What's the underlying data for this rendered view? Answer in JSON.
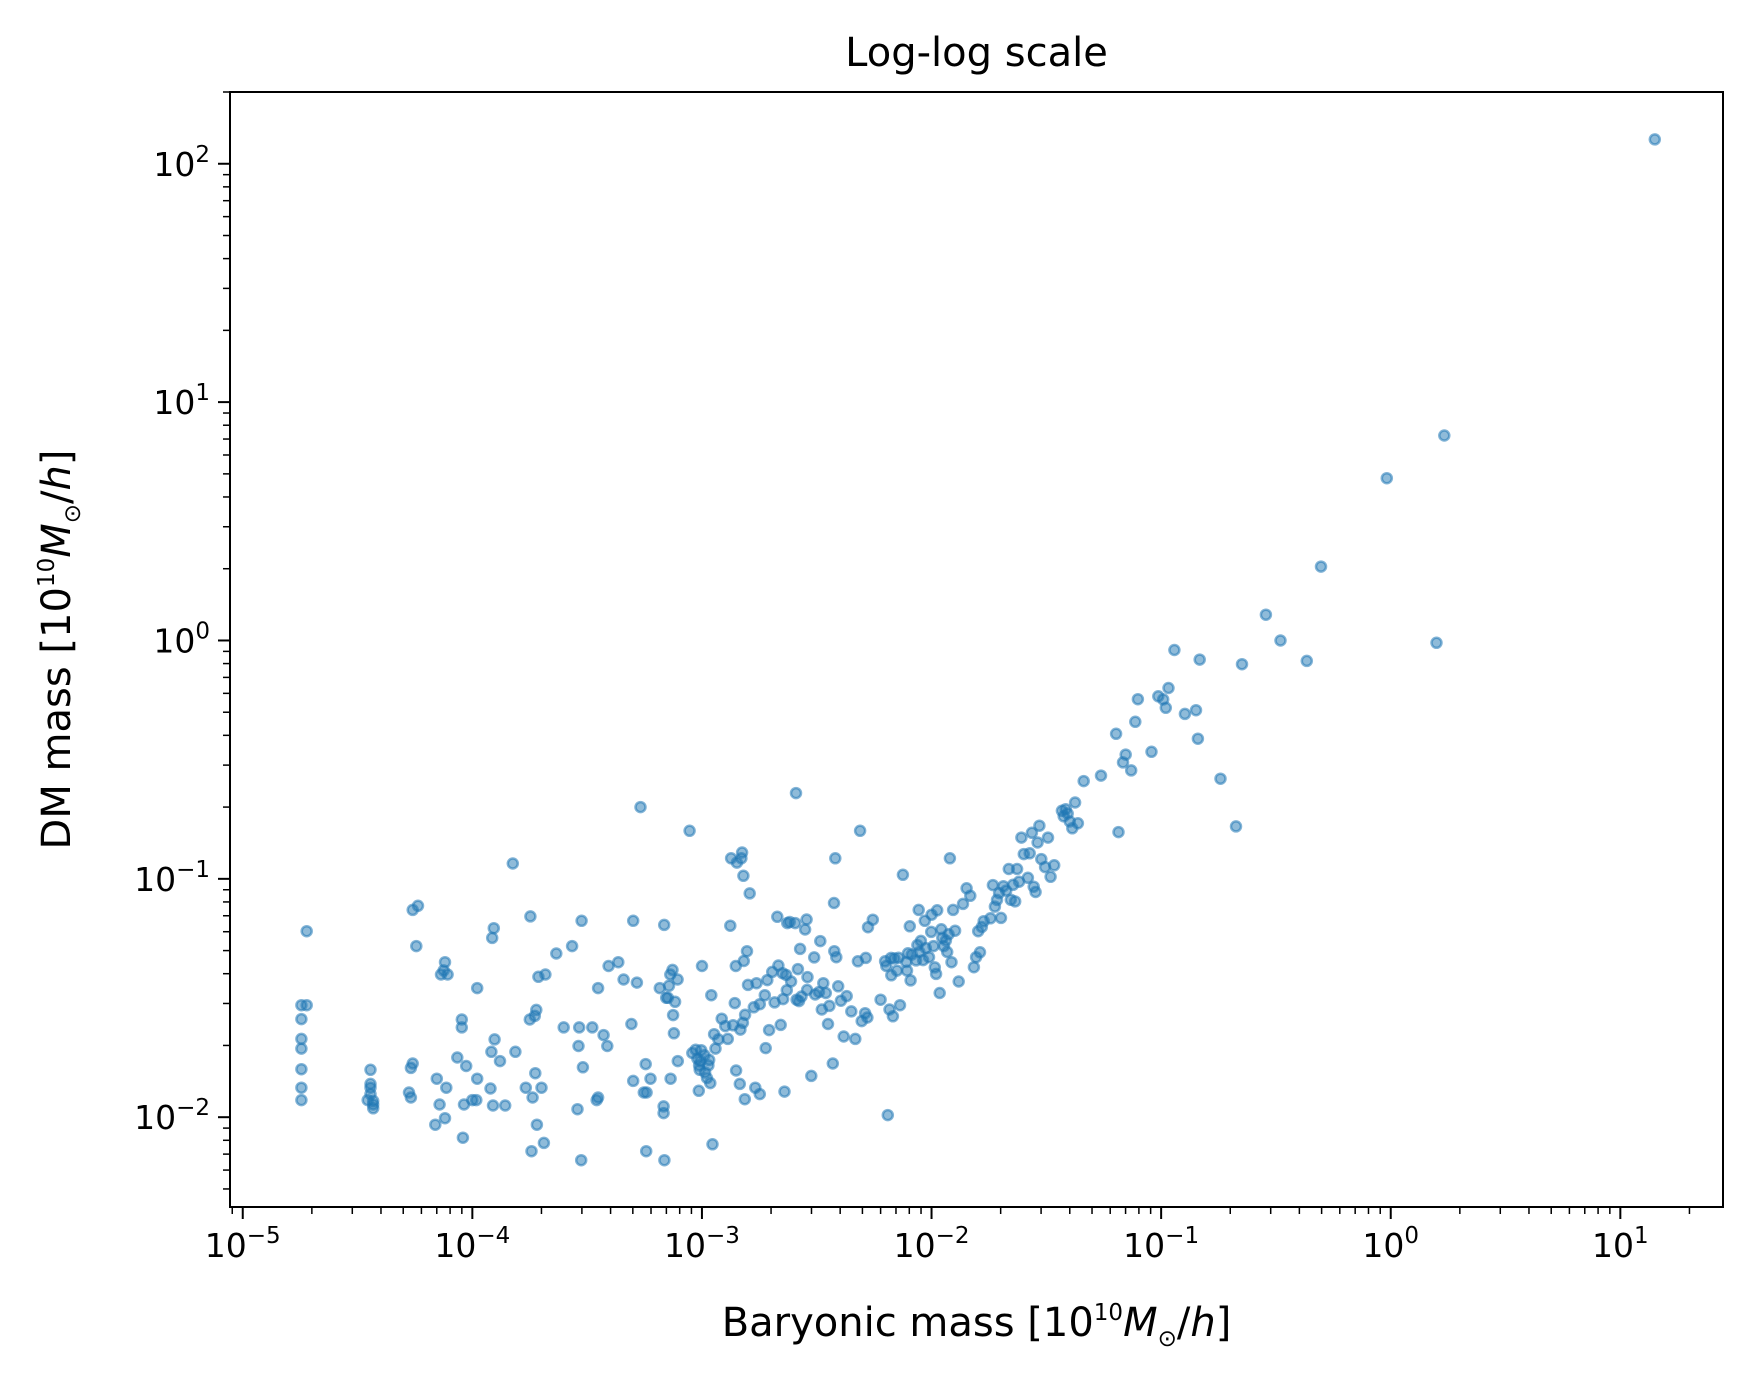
{
  "chart_data": {
    "type": "scatter",
    "title": "Log-log scale",
    "xlabel": {
      "text": "Baryonic mass [10",
      "exp": "10",
      "var": "M",
      "sub": "⊙",
      "tail": "/",
      "unit": "h",
      "close": "]"
    },
    "ylabel": {
      "text": "DM mass [10",
      "exp": "10",
      "var": "M",
      "sub": "⊙",
      "tail": "/",
      "unit": "h",
      "close": "]"
    },
    "xscale": "log",
    "yscale": "log",
    "xlim": [
      8.8e-06,
      28
    ],
    "ylim": [
      0.0042,
      200
    ],
    "x_ticks": [
      {
        "base": "10",
        "exp": "−5"
      },
      {
        "base": "10",
        "exp": "−4"
      },
      {
        "base": "10",
        "exp": "−3"
      },
      {
        "base": "10",
        "exp": "−2"
      },
      {
        "base": "10",
        "exp": "−1"
      },
      {
        "base": "10",
        "exp": "0"
      },
      {
        "base": "10",
        "exp": "1"
      }
    ],
    "y_ticks": [
      {
        "base": "10",
        "exp": "−2"
      },
      {
        "base": "10",
        "exp": "−1"
      },
      {
        "base": "10",
        "exp": "0"
      },
      {
        "base": "10",
        "exp": "1"
      },
      {
        "base": "10",
        "exp": "2"
      }
    ],
    "marker_color": "#1f77b4",
    "grid": false,
    "legend": "none",
    "points": [
      [
        1.8e-05,
        0.0118
      ],
      [
        1.8e-05,
        0.0133
      ],
      [
        1.8e-05,
        0.0159
      ],
      [
        1.8e-05,
        0.0194
      ],
      [
        1.8e-05,
        0.0213
      ],
      [
        1.8e-05,
        0.0258
      ],
      [
        1.8e-05,
        0.0295
      ],
      [
        1.9e-05,
        0.0295
      ],
      [
        1.9e-05,
        0.0603
      ],
      [
        3.5e-05,
        0.0118
      ],
      [
        3.6e-05,
        0.0125
      ],
      [
        3.6e-05,
        0.0133
      ],
      [
        3.6e-05,
        0.0138
      ],
      [
        3.6e-05,
        0.0158
      ],
      [
        3.7e-05,
        0.0109
      ],
      [
        3.7e-05,
        0.0113
      ],
      [
        3.7e-05,
        0.0117
      ],
      [
        5.3e-05,
        0.0127
      ],
      [
        5.4e-05,
        0.0121
      ],
      [
        5.4e-05,
        0.0161
      ],
      [
        5.5e-05,
        0.0168
      ],
      [
        5.5e-05,
        0.0741
      ],
      [
        5.7e-05,
        0.0522
      ],
      [
        5.8e-05,
        0.0771
      ],
      [
        6.9e-05,
        0.0093
      ],
      [
        7e-05,
        0.0145
      ],
      [
        7.2e-05,
        0.0113
      ],
      [
        7.3e-05,
        0.0397
      ],
      [
        7.5e-05,
        0.0413
      ],
      [
        7.6e-05,
        0.0099
      ],
      [
        7.6e-05,
        0.0447
      ],
      [
        7.7e-05,
        0.0133
      ],
      [
        7.8e-05,
        0.0397
      ],
      [
        8.6e-05,
        0.0178
      ],
      [
        9e-05,
        0.0257
      ],
      [
        9e-05,
        0.0238
      ],
      [
        9.1e-05,
        0.0082
      ],
      [
        9.2e-05,
        0.0113
      ],
      [
        9.4e-05,
        0.0164
      ],
      [
        0.0001,
        0.0118
      ],
      [
        0.000104,
        0.0118
      ],
      [
        0.000105,
        0.0145
      ],
      [
        0.000105,
        0.0348
      ],
      [
        0.00012,
        0.0132
      ],
      [
        0.000121,
        0.0188
      ],
      [
        0.000122,
        0.0565
      ],
      [
        0.000123,
        0.0112
      ],
      [
        0.000124,
        0.0621
      ],
      [
        0.000125,
        0.0212
      ],
      [
        0.000132,
        0.0172
      ],
      [
        0.000139,
        0.0112
      ],
      [
        0.00015,
        0.116
      ],
      [
        0.000154,
        0.0188
      ],
      [
        0.000171,
        0.0133
      ],
      [
        0.000178,
        0.0257
      ],
      [
        0.000179,
        0.0696
      ],
      [
        0.000181,
        0.0072
      ],
      [
        0.000183,
        0.0121
      ],
      [
        0.000187,
        0.0266
      ],
      [
        0.000188,
        0.0153
      ],
      [
        0.00019,
        0.0282
      ],
      [
        0.000191,
        0.0093
      ],
      [
        0.000194,
        0.0388
      ],
      [
        0.0002,
        0.0133
      ],
      [
        0.000205,
        0.0078
      ],
      [
        0.000208,
        0.0397
      ],
      [
        0.000232,
        0.0486
      ],
      [
        0.00025,
        0.0238
      ],
      [
        0.000272,
        0.0522
      ],
      [
        0.000287,
        0.0108
      ],
      [
        0.00029,
        0.0199
      ],
      [
        0.000292,
        0.0238
      ],
      [
        0.000298,
        0.0066
      ],
      [
        0.000299,
        0.0667
      ],
      [
        0.000303,
        0.0162
      ],
      [
        0.000333,
        0.0238
      ],
      [
        0.000348,
        0.0118
      ],
      [
        0.000353,
        0.0348
      ],
      [
        0.000353,
        0.0121
      ],
      [
        0.000373,
        0.0221
      ],
      [
        0.000387,
        0.0199
      ],
      [
        0.000392,
        0.0431
      ],
      [
        0.000432,
        0.0447
      ],
      [
        0.000456,
        0.0378
      ],
      [
        0.000493,
        0.0246
      ],
      [
        0.000502,
        0.0142
      ],
      [
        0.000502,
        0.0667
      ],
      [
        0.000521,
        0.0367
      ],
      [
        0.00054,
        0.2
      ],
      [
        0.000558,
        0.0127
      ],
      [
        0.000569,
        0.0167
      ],
      [
        0.000572,
        0.0072
      ],
      [
        0.000574,
        0.0127
      ],
      [
        0.000597,
        0.0145
      ],
      [
        0.000655,
        0.0348
      ],
      [
        0.000681,
        0.0111
      ],
      [
        0.000681,
        0.0104
      ],
      [
        0.000686,
        0.0066
      ],
      [
        0.000685,
        0.0641
      ],
      [
        0.000699,
        0.0317
      ],
      [
        0.000711,
        0.0317
      ],
      [
        0.000719,
        0.0356
      ],
      [
        0.000728,
        0.0397
      ],
      [
        0.00073,
        0.0145
      ],
      [
        0.000744,
        0.0415
      ],
      [
        0.000749,
        0.0268
      ],
      [
        0.000755,
        0.0225
      ],
      [
        0.000764,
        0.0305
      ],
      [
        0.000783,
        0.0378
      ],
      [
        0.000785,
        0.0172
      ],
      [
        0.000884,
        0.159
      ],
      [
        0.000908,
        0.0186
      ],
      [
        0.000939,
        0.0192
      ],
      [
        0.000955,
        0.0176
      ],
      [
        0.000969,
        0.0129
      ],
      [
        0.000972,
        0.0165
      ],
      [
        0.000978,
        0.0158
      ],
      [
        0.000985,
        0.0172
      ],
      [
        0.000993,
        0.0191
      ],
      [
        0.001001,
        0.0431
      ],
      [
        0.001025,
        0.0182
      ],
      [
        0.001032,
        0.0154
      ],
      [
        0.001052,
        0.0146
      ],
      [
        0.001067,
        0.0165
      ],
      [
        0.001076,
        0.0174
      ],
      [
        0.001087,
        0.0139
      ],
      [
        0.001098,
        0.0325
      ],
      [
        0.001112,
        0.0077
      ],
      [
        0.00113,
        0.0223
      ],
      [
        0.001146,
        0.0194
      ],
      [
        0.00118,
        0.0212
      ],
      [
        0.001219,
        0.0259
      ],
      [
        0.001264,
        0.0241
      ],
      [
        0.001296,
        0.0213
      ],
      [
        0.001329,
        0.0636
      ],
      [
        0.00134,
        0.122
      ],
      [
        0.001367,
        0.0243
      ],
      [
        0.001391,
        0.0301
      ],
      [
        0.001405,
        0.0431
      ],
      [
        0.001409,
        0.0157
      ],
      [
        0.00142,
        0.117
      ],
      [
        0.001462,
        0.0138
      ],
      [
        0.001471,
        0.0233
      ],
      [
        0.001485,
        0.122
      ],
      [
        0.001496,
        0.129
      ],
      [
        0.001508,
        0.0249
      ],
      [
        0.001515,
        0.103
      ],
      [
        0.001521,
        0.0452
      ],
      [
        0.001537,
        0.0119
      ],
      [
        0.001541,
        0.0269
      ],
      [
        0.001572,
        0.0497
      ],
      [
        0.001587,
        0.0359
      ],
      [
        0.001614,
        0.0869
      ],
      [
        0.001682,
        0.0289
      ],
      [
        0.001708,
        0.0133
      ],
      [
        0.001729,
        0.0365
      ],
      [
        0.001786,
        0.0125
      ],
      [
        0.001786,
        0.0298
      ],
      [
        0.001879,
        0.0325
      ],
      [
        0.001895,
        0.0195
      ],
      [
        0.001926,
        0.0376
      ],
      [
        0.001962,
        0.0232
      ],
      [
        0.002024,
        0.0407
      ],
      [
        0.002073,
        0.0303
      ],
      [
        0.002129,
        0.0693
      ],
      [
        0.002153,
        0.0433
      ],
      [
        0.002203,
        0.0244
      ],
      [
        0.002245,
        0.0402
      ],
      [
        0.002256,
        0.0313
      ],
      [
        0.002289,
        0.0128
      ],
      [
        0.002327,
        0.0395
      ],
      [
        0.002341,
        0.0341
      ],
      [
        0.002354,
        0.0652
      ],
      [
        0.002412,
        0.0659
      ],
      [
        0.002445,
        0.0371
      ],
      [
        0.002548,
        0.0652
      ],
      [
        0.002568,
        0.229
      ],
      [
        0.002583,
        0.0311
      ],
      [
        0.002619,
        0.0418
      ],
      [
        0.002647,
        0.0307
      ],
      [
        0.002675,
        0.0508
      ],
      [
        0.002714,
        0.0321
      ],
      [
        0.002814,
        0.0613
      ],
      [
        0.002856,
        0.0675
      ],
      [
        0.002871,
        0.0342
      ],
      [
        0.002883,
        0.0387
      ],
      [
        0.002993,
        0.0149
      ],
      [
        0.003082,
        0.0468
      ],
      [
        0.003115,
        0.0327
      ],
      [
        0.003236,
        0.0335
      ],
      [
        0.003276,
        0.0548
      ],
      [
        0.003328,
        0.0283
      ],
      [
        0.003376,
        0.0365
      ],
      [
        0.003462,
        0.0332
      ],
      [
        0.003541,
        0.0246
      ],
      [
        0.003592,
        0.0293
      ],
      [
        0.003715,
        0.0168
      ],
      [
        0.003759,
        0.0792
      ],
      [
        0.003773,
        0.0497
      ],
      [
        0.00381,
        0.122
      ],
      [
        0.003846,
        0.0469
      ],
      [
        0.003921,
        0.0354
      ],
      [
        0.004028,
        0.0308
      ],
      [
        0.004146,
        0.0218
      ],
      [
        0.004272,
        0.0322
      ],
      [
        0.004473,
        0.0278
      ],
      [
        0.004653,
        0.0213
      ],
      [
        0.004779,
        0.0451
      ],
      [
        0.004884,
        0.159
      ],
      [
        0.004964,
        0.0253
      ],
      [
        0.005136,
        0.0273
      ],
      [
        0.005172,
        0.0466
      ],
      [
        0.005256,
        0.0262
      ],
      [
        0.005285,
        0.0627
      ],
      [
        0.00555,
        0.0674
      ],
      [
        0.006002,
        0.0311
      ],
      [
        0.006278,
        0.0451
      ],
      [
        0.006354,
        0.0431
      ],
      [
        0.006449,
        0.0102
      ],
      [
        0.006562,
        0.0283
      ],
      [
        0.006662,
        0.0466
      ],
      [
        0.006678,
        0.0394
      ],
      [
        0.006787,
        0.0265
      ],
      [
        0.006891,
        0.0463
      ],
      [
        0.007072,
        0.0412
      ],
      [
        0.007178,
        0.0467
      ],
      [
        0.007292,
        0.0295
      ],
      [
        0.007502,
        0.104
      ],
      [
        0.007765,
        0.0448
      ],
      [
        0.007817,
        0.0412
      ],
      [
        0.007899,
        0.0487
      ],
      [
        0.00804,
        0.0632
      ],
      [
        0.008104,
        0.0375
      ],
      [
        0.008204,
        0.0481
      ],
      [
        0.008567,
        0.0455
      ],
      [
        0.008674,
        0.0527
      ],
      [
        0.00879,
        0.0741
      ],
      [
        0.008853,
        0.0493
      ],
      [
        0.00899,
        0.0549
      ],
      [
        0.009184,
        0.0456
      ],
      [
        0.009347,
        0.0667
      ],
      [
        0.009438,
        0.0512
      ],
      [
        0.009753,
        0.0469
      ],
      [
        0.009969,
        0.0599
      ],
      [
        0.010004,
        0.0707
      ],
      [
        0.010203,
        0.0522
      ],
      [
        0.010329,
        0.0425
      ],
      [
        0.010465,
        0.0399
      ],
      [
        0.010589,
        0.0738
      ],
      [
        0.010849,
        0.0332
      ],
      [
        0.011033,
        0.0614
      ],
      [
        0.011136,
        0.0566
      ],
      [
        0.011315,
        0.0522
      ],
      [
        0.011553,
        0.0551
      ],
      [
        0.011695,
        0.0493
      ],
      [
        0.011868,
        0.0585
      ],
      [
        0.012017,
        0.122
      ],
      [
        0.01222,
        0.0447
      ],
      [
        0.012417,
        0.0741
      ],
      [
        0.01267,
        0.0606
      ],
      [
        0.013131,
        0.0371
      ],
      [
        0.013707,
        0.0785
      ],
      [
        0.014217,
        0.0913
      ],
      [
        0.014744,
        0.0849
      ],
      [
        0.015289,
        0.0426
      ],
      [
        0.015629,
        0.0469
      ],
      [
        0.015964,
        0.0603
      ],
      [
        0.016265,
        0.0492
      ],
      [
        0.016561,
        0.0628
      ],
      [
        0.016878,
        0.0664
      ],
      [
        0.018055,
        0.0683
      ],
      [
        0.018496,
        0.0941
      ],
      [
        0.018877,
        0.0765
      ],
      [
        0.019276,
        0.0816
      ],
      [
        0.019683,
        0.0871
      ],
      [
        0.020063,
        0.0686
      ],
      [
        0.020562,
        0.0931
      ],
      [
        0.021138,
        0.0893
      ],
      [
        0.021709,
        0.11
      ],
      [
        0.022136,
        0.0817
      ],
      [
        0.022648,
        0.0944
      ],
      [
        0.023136,
        0.0804
      ],
      [
        0.023578,
        0.11
      ],
      [
        0.024053,
        0.0973
      ],
      [
        0.024628,
        0.149
      ],
      [
        0.025237,
        0.127
      ],
      [
        0.026279,
        0.101
      ],
      [
        0.026757,
        0.128
      ],
      [
        0.027367,
        0.156
      ],
      [
        0.027847,
        0.0927
      ],
      [
        0.028408,
        0.0881
      ],
      [
        0.028981,
        0.142
      ],
      [
        0.029491,
        0.167
      ],
      [
        0.030074,
        0.121
      ],
      [
        0.031228,
        0.112
      ],
      [
        0.03216,
        0.149
      ],
      [
        0.033017,
        0.102
      ],
      [
        0.034206,
        0.114
      ],
      [
        0.036948,
        0.193
      ],
      [
        0.037619,
        0.183
      ],
      [
        0.038388,
        0.196
      ],
      [
        0.039187,
        0.188
      ],
      [
        0.040026,
        0.174
      ],
      [
        0.041009,
        0.163
      ],
      [
        0.042205,
        0.209
      ],
      [
        0.043416,
        0.171
      ],
      [
        0.046012,
        0.257
      ],
      [
        0.054731,
        0.271
      ],
      [
        0.063651,
        0.406
      ],
      [
        0.065194,
        0.157
      ],
      [
        0.068209,
        0.308
      ],
      [
        0.070112,
        0.332
      ],
      [
        0.074029,
        0.285
      ],
      [
        0.077197,
        0.456
      ],
      [
        0.079248,
        0.567
      ],
      [
        0.090813,
        0.341
      ],
      [
        0.097148,
        0.583
      ],
      [
        0.102134,
        0.566
      ],
      [
        0.104823,
        0.522
      ],
      [
        0.107667,
        0.632
      ],
      [
        0.114216,
        0.912
      ],
      [
        0.12692,
        0.492
      ],
      [
        0.14181,
        0.51
      ],
      [
        0.144519,
        0.387
      ],
      [
        0.147282,
        0.831
      ],
      [
        0.181286,
        0.263
      ],
      [
        0.211873,
        0.166
      ],
      [
        0.225038,
        0.795
      ],
      [
        0.286,
        1.283
      ],
      [
        0.330993,
        1.0
      ],
      [
        0.431,
        0.821
      ],
      [
        0.497,
        2.041
      ],
      [
        0.961,
        4.796
      ],
      [
        1.583,
        0.978
      ],
      [
        1.711,
        7.244
      ],
      [
        14.128,
        126.5
      ]
    ]
  }
}
